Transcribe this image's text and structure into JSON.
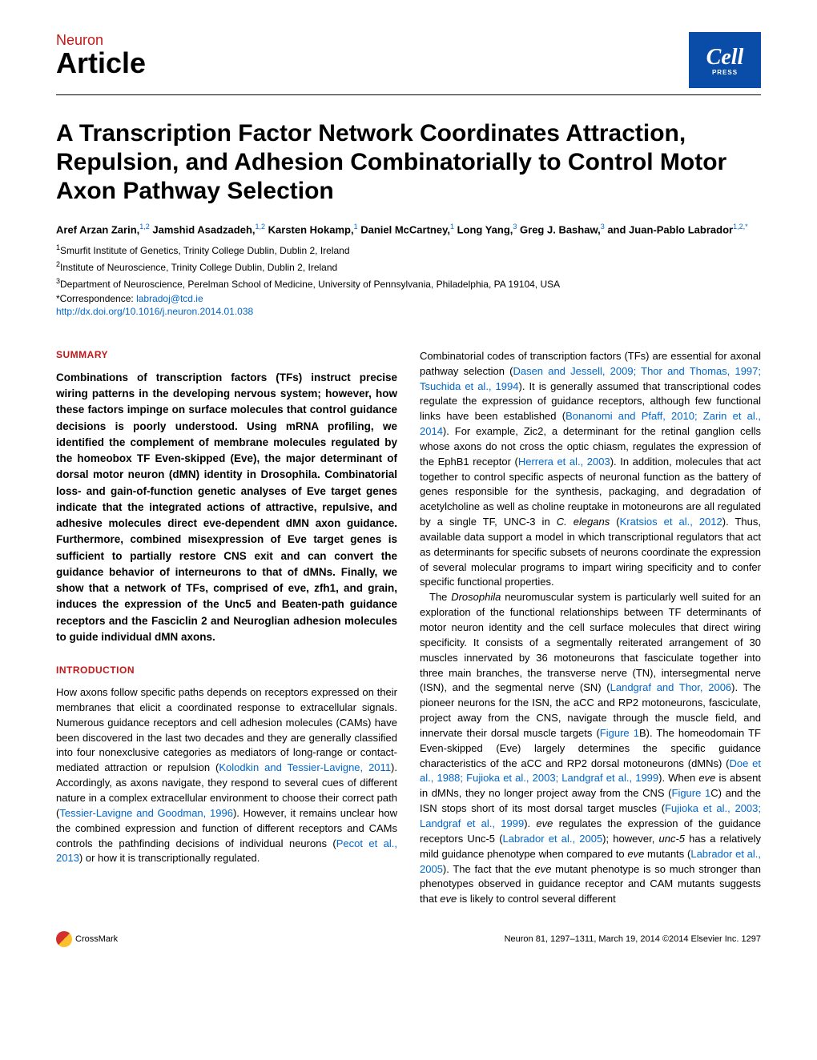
{
  "header": {
    "journal": "Neuron",
    "article_type": "Article",
    "logo_main": "Cell",
    "logo_sub": "PRESS"
  },
  "title": "A Transcription Factor Network Coordinates Attraction, Repulsion, and Adhesion Combinatorially to Control Motor Axon Pathway Selection",
  "authors_html": "Aref Arzan Zarin,<sup>1,2</sup> Jamshid Asadzadeh,<sup>1,2</sup> Karsten Hokamp,<sup>1</sup> Daniel McCartney,<sup>1</sup> Long Yang,<sup>3</sup> Greg J. Bashaw,<sup>3</sup> and Juan-Pablo Labrador<sup>1,2,*</sup>",
  "affiliations": [
    "<sup>1</sup>Smurfit Institute of Genetics, Trinity College Dublin, Dublin 2, Ireland",
    "<sup>2</sup>Institute of Neuroscience, Trinity College Dublin, Dublin 2, Ireland",
    "<sup>3</sup>Department of Neuroscience, Perelman School of Medicine, University of Pennsylvania, Philadelphia, PA 19104, USA"
  ],
  "correspondence_label": "*Correspondence: ",
  "correspondence_email": "labradoj@tcd.ie",
  "doi": "http://dx.doi.org/10.1016/j.neuron.2014.01.038",
  "sections": {
    "summary_heading": "SUMMARY",
    "summary": "Combinations of transcription factors (TFs) instruct precise wiring patterns in the developing nervous system; however, how these factors impinge on surface molecules that control guidance decisions is poorly understood. Using mRNA profiling, we identified the complement of membrane molecules regulated by the homeobox TF Even-skipped (Eve), the major determinant of dorsal motor neuron (dMN) identity in Drosophila. Combinatorial loss- and gain-of-function genetic analyses of Eve target genes indicate that the integrated actions of attractive, repulsive, and adhesive molecules direct eve-dependent dMN axon guidance. Furthermore, combined misexpression of Eve target genes is sufficient to partially restore CNS exit and can convert the guidance behavior of interneurons to that of dMNs. Finally, we show that a network of TFs, comprised of eve, zfh1, and grain, induces the expression of the Unc5 and Beaten-path guidance receptors and the Fasciclin 2 and Neuroglian adhesion molecules to guide individual dMN axons.",
    "intro_heading": "INTRODUCTION",
    "intro_left": "How axons follow specific paths depends on receptors expressed on their membranes that elicit a coordinated response to extracellular signals. Numerous guidance receptors and cell adhesion molecules (CAMs) have been discovered in the last two decades and they are generally classified into four nonexclusive categories as mediators of long-range or contact-mediated attraction or repulsion (<span class='ref-link'>Kolodkin and Tessier-Lavigne, 2011</span>). Accordingly, as axons navigate, they respond to several cues of different nature in a complex extracellular environment to choose their correct path (<span class='ref-link'>Tessier-Lavigne and Goodman, 1996</span>). However, it remains unclear how the combined expression and function of different receptors and CAMs controls the pathfinding decisions of individual neurons (<span class='ref-link'>Pecot et al., 2013</span>) or how it is transcriptionally regulated.",
    "right_p1": "Combinatorial codes of transcription factors (TFs) are essential for axonal pathway selection (<span class='ref-link'>Dasen and Jessell, 2009; Thor and Thomas, 1997; Tsuchida et al., 1994</span>). It is generally assumed that transcriptional codes regulate the expression of guidance receptors, although few functional links have been established (<span class='ref-link'>Bonanomi and Pfaff, 2010; Zarin et al., 2014</span>). For example, Zic2, a determinant for the retinal ganglion cells whose axons do not cross the optic chiasm, regulates the expression of the EphB1 receptor (<span class='ref-link'>Herrera et al., 2003</span>). In addition, molecules that act together to control specific aspects of neuronal function as the battery of genes responsible for the synthesis, packaging, and degradation of acetylcholine as well as choline reuptake in motoneurons are all regulated by a single TF, UNC-3 in <span class='italic'>C. elegans</span> (<span class='ref-link'>Kratsios et al., 2012</span>). Thus, available data support a model in which transcriptional regulators that act as determinants for specific subsets of neurons coordinate the expression of several molecular programs to impart wiring specificity and to confer specific functional properties.",
    "right_p2": "The <span class='italic'>Drosophila</span> neuromuscular system is particularly well suited for an exploration of the functional relationships between TF determinants of motor neuron identity and the cell surface molecules that direct wiring specificity. It consists of a segmentally reiterated arrangement of 30 muscles innervated by 36 motoneurons that fasciculate together into three main branches, the transverse nerve (TN), intersegmental nerve (ISN), and the segmental nerve (SN) (<span class='ref-link'>Landgraf and Thor, 2006</span>). The pioneer neurons for the ISN, the aCC and RP2 motoneurons, fasciculate, project away from the CNS, navigate through the muscle field, and innervate their dorsal muscle targets (<span class='ref-link'>Figure 1</span>B). The homeodomain TF Even-skipped (Eve) largely determines the specific guidance characteristics of the aCC and RP2 dorsal motoneurons (dMNs) (<span class='ref-link'>Doe et al., 1988; Fujioka et al., 2003; Landgraf et al., 1999</span>). When <span class='italic'>eve</span> is absent in dMNs, they no longer project away from the CNS (<span class='ref-link'>Figure 1</span>C) and the ISN stops short of its most dorsal target muscles (<span class='ref-link'>Fujioka et al., 2003; Landgraf et al., 1999</span>). <span class='italic'>eve</span> regulates the expression of the guidance receptors Unc-5 (<span class='ref-link'>Labrador et al., 2005</span>); however, <span class='italic'>unc-5</span> has a relatively mild guidance phenotype when compared to <span class='italic'>eve</span> mutants (<span class='ref-link'>Labrador et al., 2005</span>). The fact that the <span class='italic'>eve</span> mutant phenotype is so much stronger than phenotypes observed in guidance receptor and CAM mutants suggests that <span class='italic'>eve</span> is likely to control several different"
  },
  "footer": {
    "crossmark": "CrossMark",
    "citation": "Neuron 81, 1297–1311, March 19, 2014 ©2014 Elsevier Inc.  1297"
  },
  "colors": {
    "brand_red": "#c01818",
    "link_blue": "#0066cc",
    "logo_blue": "#0a4da8"
  }
}
